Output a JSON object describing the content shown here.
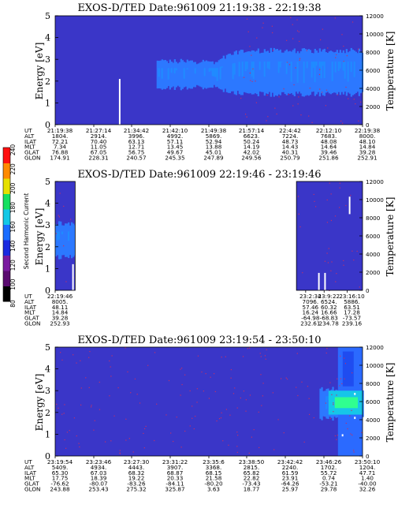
{
  "chart_data": [
    {
      "type": "heatmap",
      "title": "EXOS-D/TED   Date:961009  21:19:38 - 22:19:38",
      "ylabel": "Energy [eV]",
      "y2label": "Temperature [K]",
      "ylim": [
        0,
        5
      ],
      "y2lim": [
        0,
        12000
      ],
      "yticks": [
        "0",
        "1",
        "2",
        "3",
        "4",
        "5"
      ],
      "y2ticks": [
        "0",
        "2000",
        "4000",
        "6000",
        "8000",
        "10000",
        "12000"
      ],
      "band": {
        "start_frac": 0.33,
        "center_eV": 2.3,
        "half_width_eV": 0.6,
        "grow_at_frac": 0.52,
        "grown_half_width_eV": 1.0,
        "center_after_grow_eV": 2.4
      },
      "speckle": {
        "start_frac": 0.6,
        "density": 0.5
      },
      "spikes": [
        {
          "frac": 0.21,
          "from_eV": 0,
          "to_eV": 2.1
        }
      ],
      "table": {
        "labels": [
          "UT",
          "ALT",
          "ILAT",
          "MLT",
          "GLAT",
          "GLON"
        ],
        "columns": [
          [
            "21:19:38",
            "1804.",
            "72.21",
            "7.34",
            "76.88",
            "174.91"
          ],
          [
            "21:27:14",
            "2914.",
            "70.40",
            "11.05",
            "67.05",
            "228.31"
          ],
          [
            "21:34:42",
            "3996.",
            "63.13",
            "12.71",
            "56.75",
            "240.57"
          ],
          [
            "21:42:10",
            "4992.",
            "57.11",
            "13.45",
            "49.67",
            "245.35"
          ],
          [
            "21:49:38",
            "5869.",
            "52.94",
            "13.88",
            "45.01",
            "247.89"
          ],
          [
            "21:57:14",
            "6623.",
            "50.24",
            "14.19",
            "42.02",
            "249.56"
          ],
          [
            "22:4:42",
            "7224.",
            "48.73",
            "14.43",
            "40.31",
            "250.79"
          ],
          [
            "22:12:10",
            "7683.",
            "48.08",
            "14.64",
            "39.46",
            "251.86"
          ],
          [
            "22:19:38",
            "8000.",
            "48.10",
            "14.84",
            "39.28",
            "252.91"
          ]
        ]
      }
    },
    {
      "type": "heatmap",
      "title": "EXOS-D/TED   Date:961009  22:19:46 - 23:19:46",
      "ylabel": "Energy [eV]",
      "y2label": "Temperature [K]",
      "ylim": [
        0,
        5
      ],
      "y2lim": [
        0,
        12000
      ],
      "yticks": [
        "0",
        "1",
        "2",
        "3",
        "4",
        "5"
      ],
      "y2ticks": [
        "0",
        "2000",
        "4000",
        "6000",
        "8000",
        "10000",
        "12000"
      ],
      "gap": {
        "from_frac": 0.065,
        "to_frac": 0.785
      },
      "band": {
        "start_frac": 0.0,
        "end_frac": 0.065,
        "center_eV": 2.3,
        "half_width_eV": 0.8
      },
      "speckle": {
        "start_frac": 0.0,
        "density": 0.35
      },
      "spikes": [
        {
          "frac": 0.058,
          "from_eV": 0.0,
          "to_eV": 1.2
        },
        {
          "frac": 0.858,
          "from_eV": 0.0,
          "to_eV": 0.8
        },
        {
          "frac": 0.878,
          "from_eV": 0.0,
          "to_eV": 0.8
        },
        {
          "frac": 0.958,
          "from_eV": 3.5,
          "to_eV": 4.3
        }
      ],
      "table": {
        "labels": [
          "UT",
          "ALT",
          "ILAT",
          "MLT",
          "GLAT",
          "GLON"
        ],
        "columns": [
          [
            "22:19:46",
            "8005.",
            "48.11",
            "14.84",
            "39.28",
            "252.93"
          ],
          [
            "23:2:34",
            "7096.",
            "57.46",
            "16.24",
            "-64.98",
            "232.61"
          ],
          [
            "23:9:22",
            "6524.",
            "60.32",
            "16.66",
            "-68.83",
            "234.78"
          ],
          [
            "23:16:10",
            "5886.",
            "63.51",
            "17.28",
            "-73.57",
            "239.16"
          ]
        ]
      }
    },
    {
      "type": "heatmap",
      "title": "EXOS-D/TED   Date:961009  23:19:54 - 23:50:10",
      "ylabel": "Energy [eV]",
      "y2label": "Temperature [K]",
      "ylim": [
        0,
        5
      ],
      "y2lim": [
        0,
        12000
      ],
      "yticks": [
        "0",
        "1",
        "2",
        "3",
        "4",
        "5"
      ],
      "y2ticks": [
        "0",
        "2000",
        "4000",
        "6000",
        "8000",
        "10000",
        "12000"
      ],
      "band": {
        "start_frac": 0.86,
        "center_eV": 2.4,
        "half_width_eV": 0.7
      },
      "hot_region": {
        "start_frac": 0.92
      },
      "speckle": {
        "start_frac": 0.0,
        "density": 0.45
      },
      "spikes": [
        {
          "frac": 0.935,
          "from_eV": 0.9,
          "to_eV": 1.0
        },
        {
          "frac": 0.975,
          "from_eV": 1.7,
          "to_eV": 1.8
        },
        {
          "frac": 0.975,
          "from_eV": 2.8,
          "to_eV": 2.9
        }
      ],
      "table": {
        "labels": [
          "UT",
          "ALT",
          "ILAT",
          "MLT",
          "GLAT",
          "GLON"
        ],
        "columns": [
          [
            "23:19:54",
            "5409.",
            "65.30",
            "17.75",
            "-76.62",
            "243.88"
          ],
          [
            "23:23:46",
            "4934.",
            "67.03",
            "18.39",
            "-80.07",
            "253.43"
          ],
          [
            "23:27:30",
            "4443.",
            "68.32",
            "19.22",
            "-83.26",
            "275.32"
          ],
          [
            "23:31:22",
            "3907.",
            "68.87",
            "20.33",
            "-84.11",
            "325.87"
          ],
          [
            "23:35:6",
            "3368.",
            "68.15",
            "21.58",
            "-80.20",
            "3.63"
          ],
          [
            "23:38:50",
            "2815.",
            "65.82",
            "22.82",
            "-73.43",
            "18.77"
          ],
          [
            "23:42:42",
            "2240.",
            "61.59",
            "23.91",
            "-64.26",
            "25.97"
          ],
          [
            "23:46:26",
            "1702.",
            "55.72",
            "0.74",
            "-53.21",
            "29.78"
          ],
          [
            "23:50:10",
            "1204.",
            "47.71",
            "1.40",
            "-40.00",
            "32.26"
          ]
        ]
      }
    }
  ],
  "colorbar": {
    "label": "Second Harmonic Current",
    "ticks": [
      "80",
      "100",
      "120",
      "140",
      "160",
      "180",
      "200",
      "220",
      "240"
    ],
    "colors": [
      "#000000",
      "#5a0a70",
      "#7a1aa0",
      "#1a2ae0",
      "#1a6cff",
      "#13c8e6",
      "#16e060",
      "#e6e000",
      "#ff8a00",
      "#ff1010"
    ]
  },
  "colors": {
    "background": "#3a36c8",
    "band": "#2c78ff",
    "band_core": "#1f8cff",
    "hot": "#16c6e8",
    "hot_core": "#30ff90",
    "speckle": "#c0306a",
    "spike": "#ffffff",
    "gap": "#ffffff"
  }
}
